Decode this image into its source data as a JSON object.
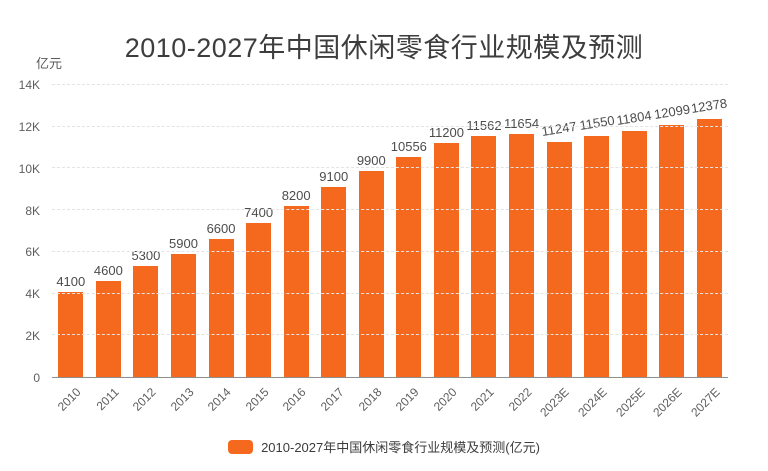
{
  "title": "2010-2027年中国休闲零食行业规模及预测",
  "unit_label": "亿元",
  "legend": {
    "label": "2010-2027年中国休闲零食行业规模及预测(亿元)",
    "swatch_color": "#f5691f"
  },
  "colors": {
    "bar": "#f5691f",
    "title_text": "#3d3d3d",
    "axis_text": "#5e5e5e",
    "value_text": "#4c4c4c",
    "gridline": "#e3e3e3",
    "axis_line": "#8f8f8f",
    "background": "#ffffff"
  },
  "chart_data": {
    "type": "bar",
    "title": "2010-2027年中国休闲零食行业规模及预测",
    "ylabel": "亿元",
    "xlabel": "",
    "categories": [
      "2010",
      "2011",
      "2012",
      "2013",
      "2014",
      "2015",
      "2016",
      "2017",
      "2018",
      "2019",
      "2020",
      "2021",
      "2022",
      "2023E",
      "2024E",
      "2025E",
      "2026E",
      "2027E"
    ],
    "values": [
      4100,
      4600,
      5300,
      5900,
      6600,
      7400,
      8200,
      9100,
      9900,
      10556,
      11200,
      11562,
      11654,
      11247,
      11550,
      11804,
      12099,
      12378
    ],
    "ylim": [
      0,
      14000
    ],
    "y_step": 2000,
    "y_tick_labels": [
      "0",
      "2K",
      "4K",
      "6K",
      "8K",
      "10K",
      "12K",
      "14K"
    ],
    "grid": "horizontal-dashed",
    "legend_position": "bottom",
    "legend_entries": [
      "2010-2027年中国休闲零食行业规模及预测(亿元)"
    ],
    "bar_color": "#f5691f",
    "x_tick_rotation": -45
  }
}
